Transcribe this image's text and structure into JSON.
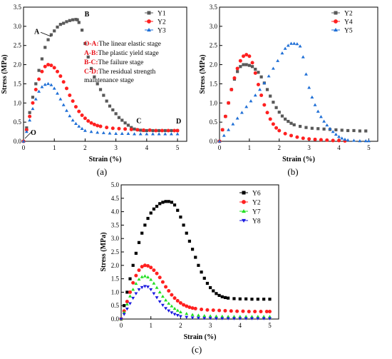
{
  "chart_data": [
    {
      "panel": "(a)",
      "type": "scatter",
      "xlabel": "Strain (%)",
      "ylabel": "Stress (MPa)",
      "xlim": [
        0,
        5.3
      ],
      "ylim": [
        0,
        3.5
      ],
      "xticks": [
        "0",
        "1",
        "2",
        "3",
        "4",
        "5"
      ],
      "yticks": [
        "0.0",
        "0.5",
        "1.0",
        "1.5",
        "2.0",
        "2.5",
        "3.0",
        "3.5"
      ],
      "legend_position": "top-right",
      "series": [
        {
          "name": "Y1",
          "color": "#595959",
          "marker": "square",
          "x": [
            0.0,
            0.1,
            0.2,
            0.3,
            0.4,
            0.5,
            0.6,
            0.7,
            0.8,
            0.9,
            1.0,
            1.1,
            1.2,
            1.3,
            1.4,
            1.5,
            1.6,
            1.7,
            1.75,
            1.8,
            1.9,
            2.0,
            2.1,
            2.2,
            2.3,
            2.4,
            2.5,
            2.6,
            2.7,
            2.8,
            2.9,
            3.0,
            3.1,
            3.2,
            3.3,
            3.4,
            3.5,
            3.6,
            3.7,
            3.8,
            3.9,
            4.0,
            4.2,
            4.4,
            4.6,
            4.8,
            5.0
          ],
          "y": [
            0.0,
            0.35,
            0.75,
            1.15,
            1.5,
            1.85,
            2.15,
            2.45,
            2.65,
            2.78,
            2.88,
            2.98,
            3.05,
            3.08,
            3.12,
            3.15,
            3.17,
            3.18,
            3.17,
            3.1,
            2.9,
            2.55,
            2.2,
            1.9,
            1.68,
            1.5,
            1.35,
            1.2,
            1.05,
            0.92,
            0.82,
            0.72,
            0.62,
            0.55,
            0.48,
            0.42,
            0.36,
            0.32,
            0.3,
            0.29,
            0.28,
            0.28,
            0.28,
            0.28,
            0.28,
            0.28,
            0.28
          ]
        },
        {
          "name": "Y2",
          "color": "#ff2020",
          "marker": "circle",
          "x": [
            0.0,
            0.1,
            0.2,
            0.3,
            0.4,
            0.5,
            0.6,
            0.7,
            0.8,
            0.9,
            1.0,
            1.1,
            1.2,
            1.3,
            1.4,
            1.5,
            1.6,
            1.7,
            1.8,
            1.9,
            2.0,
            2.1,
            2.2,
            2.3,
            2.4,
            2.5,
            2.7,
            2.9,
            3.1,
            3.3,
            3.5,
            3.7,
            3.9,
            4.1,
            4.3,
            4.5,
            4.7,
            4.9,
            5.0
          ],
          "y": [
            0.0,
            0.3,
            0.65,
            1.0,
            1.35,
            1.62,
            1.82,
            1.95,
            2.0,
            1.98,
            1.92,
            1.82,
            1.7,
            1.55,
            1.38,
            1.2,
            1.05,
            0.9,
            0.78,
            0.68,
            0.6,
            0.53,
            0.48,
            0.44,
            0.41,
            0.39,
            0.36,
            0.34,
            0.33,
            0.32,
            0.31,
            0.3,
            0.29,
            0.29,
            0.28,
            0.28,
            0.28,
            0.28,
            0.28
          ]
        },
        {
          "name": "Y3",
          "color": "#1f6fd6",
          "marker": "triangle",
          "x": [
            0.0,
            0.1,
            0.2,
            0.3,
            0.4,
            0.5,
            0.6,
            0.7,
            0.8,
            0.9,
            1.0,
            1.1,
            1.2,
            1.3,
            1.4,
            1.5,
            1.6,
            1.7,
            1.8,
            1.9,
            2.0,
            2.2,
            2.4,
            2.6,
            2.8,
            3.0,
            3.2,
            3.4,
            3.6,
            3.8,
            4.0,
            4.2,
            4.4,
            4.6,
            4.8,
            5.0
          ],
          "y": [
            0.0,
            0.25,
            0.55,
            0.85,
            1.1,
            1.3,
            1.42,
            1.48,
            1.5,
            1.47,
            1.38,
            1.25,
            1.1,
            0.95,
            0.8,
            0.66,
            0.55,
            0.46,
            0.39,
            0.33,
            0.28,
            0.25,
            0.23,
            0.22,
            0.21,
            0.2,
            0.2,
            0.2,
            0.19,
            0.19,
            0.19,
            0.19,
            0.19,
            0.19,
            0.19,
            0.19
          ]
        }
      ],
      "annotations": {
        "point_labels": [
          {
            "text": "A",
            "x": 0.95,
            "y": 2.88
          },
          {
            "text": "B",
            "x": 1.75,
            "y": 3.18
          },
          {
            "text": "O",
            "x": 0.0,
            "y": 0.0
          },
          {
            "text": "C",
            "x": 3.8,
            "y": 0.29
          },
          {
            "text": "D",
            "x": 5.0,
            "y": 0.28
          }
        ],
        "stages": [
          {
            "key": "O-A:",
            "text": "The linear elastic stage"
          },
          {
            "key": "A-B:",
            "text": "The plastic yield stage"
          },
          {
            "key": "B-C:",
            "text": "The failure stage"
          },
          {
            "key": "C-D:",
            "text": "The residual strength"
          },
          {
            "key": "",
            "text": "maintenance stage"
          }
        ]
      }
    },
    {
      "panel": "(b)",
      "type": "scatter",
      "xlabel": "Strain (%)",
      "ylabel": "Stress (MPa)",
      "xlim": [
        0,
        5.3
      ],
      "ylim": [
        0,
        3.5
      ],
      "xticks": [
        "0",
        "1",
        "2",
        "3",
        "4",
        "5"
      ],
      "yticks": [
        "0.0",
        "0.5",
        "1.0",
        "1.5",
        "2.0",
        "2.5",
        "3.0",
        "3.5"
      ],
      "legend_position": "top-right",
      "series": [
        {
          "name": "Y2",
          "color": "#595959",
          "marker": "square",
          "x": [
            0.0,
            0.1,
            0.2,
            0.3,
            0.4,
            0.5,
            0.6,
            0.7,
            0.8,
            0.9,
            1.0,
            1.1,
            1.2,
            1.3,
            1.4,
            1.5,
            1.6,
            1.7,
            1.8,
            1.9,
            2.0,
            2.1,
            2.2,
            2.3,
            2.4,
            2.5,
            2.7,
            2.9,
            3.1,
            3.3,
            3.5,
            3.7,
            3.9,
            4.1,
            4.3,
            4.5,
            4.7,
            4.9
          ],
          "y": [
            0.0,
            0.3,
            0.65,
            1.0,
            1.35,
            1.62,
            1.82,
            1.95,
            2.0,
            2.0,
            1.98,
            1.95,
            1.88,
            1.8,
            1.68,
            1.52,
            1.35,
            1.18,
            1.02,
            0.88,
            0.76,
            0.66,
            0.58,
            0.52,
            0.47,
            0.43,
            0.39,
            0.36,
            0.34,
            0.33,
            0.32,
            0.31,
            0.3,
            0.29,
            0.28,
            0.28,
            0.27,
            0.27
          ]
        },
        {
          "name": "Y4",
          "color": "#ff2020",
          "marker": "circle",
          "x": [
            0.0,
            0.1,
            0.2,
            0.3,
            0.4,
            0.5,
            0.6,
            0.7,
            0.8,
            0.9,
            1.0,
            1.1,
            1.2,
            1.3,
            1.4,
            1.5,
            1.6,
            1.7,
            1.8,
            1.9,
            2.0,
            2.2,
            2.4,
            2.6,
            2.8,
            3.0,
            3.2,
            3.4,
            3.6,
            3.8,
            4.0,
            4.2
          ],
          "y": [
            0.0,
            0.3,
            0.65,
            1.0,
            1.35,
            1.65,
            1.9,
            2.1,
            2.22,
            2.26,
            2.22,
            2.05,
            1.78,
            1.48,
            1.2,
            0.95,
            0.75,
            0.58,
            0.45,
            0.35,
            0.28,
            0.2,
            0.15,
            0.11,
            0.08,
            0.06,
            0.05,
            0.04,
            0.03,
            0.02,
            0.02,
            0.01
          ]
        },
        {
          "name": "Y5",
          "color": "#1f6fd6",
          "marker": "triangle",
          "x": [
            0.0,
            0.15,
            0.3,
            0.45,
            0.6,
            0.75,
            0.9,
            1.05,
            1.2,
            1.35,
            1.5,
            1.65,
            1.8,
            1.95,
            2.1,
            2.2,
            2.3,
            2.4,
            2.5,
            2.6,
            2.7,
            2.8,
            2.9,
            3.0,
            3.1,
            3.2,
            3.3,
            3.4,
            3.5,
            3.6,
            3.7,
            3.8,
            3.9,
            4.0,
            4.1,
            4.2,
            4.3,
            4.5,
            4.7,
            4.9,
            5.0
          ],
          "y": [
            0.0,
            0.15,
            0.3,
            0.45,
            0.6,
            0.75,
            0.9,
            1.05,
            1.2,
            1.35,
            1.52,
            1.7,
            1.9,
            2.1,
            2.3,
            2.42,
            2.5,
            2.55,
            2.55,
            2.54,
            2.48,
            2.2,
            1.75,
            1.4,
            1.15,
            0.95,
            0.78,
            0.64,
            0.52,
            0.42,
            0.33,
            0.25,
            0.18,
            0.12,
            0.08,
            0.05,
            0.03,
            0.02,
            0.01,
            0.01,
            0.01
          ]
        }
      ]
    },
    {
      "panel": "(c)",
      "type": "scatter",
      "xlabel": "Strain (%)",
      "ylabel": "Stress (MPa)",
      "xlim": [
        0,
        5.3
      ],
      "ylim": [
        0,
        5.0
      ],
      "xticks": [
        "0",
        "1",
        "2",
        "3",
        "4",
        "5"
      ],
      "yticks": [
        "0.0",
        "0.5",
        "1.0",
        "1.5",
        "2.0",
        "2.5",
        "3.0",
        "3.5",
        "4.0",
        "4.5",
        "5.0"
      ],
      "legend_position": "top-right",
      "series": [
        {
          "name": "Y6",
          "color": "#000000",
          "marker": "square",
          "x": [
            0.0,
            0.1,
            0.2,
            0.3,
            0.4,
            0.5,
            0.6,
            0.7,
            0.8,
            0.9,
            1.0,
            1.1,
            1.2,
            1.3,
            1.4,
            1.5,
            1.6,
            1.7,
            1.8,
            1.9,
            2.0,
            2.1,
            2.2,
            2.3,
            2.4,
            2.5,
            2.6,
            2.7,
            2.8,
            2.9,
            3.0,
            3.1,
            3.2,
            3.3,
            3.4,
            3.5,
            3.6,
            3.8,
            4.0,
            4.2,
            4.4,
            4.6,
            4.8,
            5.0
          ],
          "y": [
            0.0,
            0.5,
            1.0,
            1.5,
            2.0,
            2.45,
            2.85,
            3.2,
            3.5,
            3.75,
            3.95,
            4.1,
            4.2,
            4.3,
            4.35,
            4.38,
            4.38,
            4.35,
            4.25,
            4.05,
            3.8,
            3.5,
            3.2,
            2.9,
            2.6,
            2.3,
            2.0,
            1.75,
            1.52,
            1.33,
            1.17,
            1.05,
            0.95,
            0.88,
            0.83,
            0.8,
            0.78,
            0.76,
            0.75,
            0.75,
            0.74,
            0.74,
            0.74,
            0.74
          ]
        },
        {
          "name": "Y2",
          "color": "#ff2020",
          "marker": "circle",
          "x": [
            0.0,
            0.1,
            0.2,
            0.3,
            0.4,
            0.5,
            0.6,
            0.7,
            0.8,
            0.9,
            1.0,
            1.1,
            1.2,
            1.3,
            1.4,
            1.5,
            1.6,
            1.7,
            1.8,
            1.9,
            2.0,
            2.1,
            2.2,
            2.3,
            2.4,
            2.5,
            2.7,
            2.9,
            3.1,
            3.3,
            3.5,
            3.7,
            3.9,
            4.1,
            4.3,
            4.5,
            4.7,
            4.9,
            5.0
          ],
          "y": [
            0.0,
            0.3,
            0.65,
            1.0,
            1.35,
            1.62,
            1.82,
            1.95,
            2.0,
            1.98,
            1.92,
            1.82,
            1.7,
            1.55,
            1.38,
            1.2,
            1.05,
            0.9,
            0.78,
            0.68,
            0.6,
            0.53,
            0.48,
            0.44,
            0.41,
            0.39,
            0.36,
            0.34,
            0.33,
            0.32,
            0.31,
            0.3,
            0.29,
            0.29,
            0.28,
            0.28,
            0.28,
            0.28,
            0.28
          ]
        },
        {
          "name": "Y7",
          "color": "#22e022",
          "marker": "triangle",
          "x": [
            0.0,
            0.1,
            0.2,
            0.3,
            0.4,
            0.5,
            0.6,
            0.7,
            0.8,
            0.9,
            1.0,
            1.1,
            1.2,
            1.3,
            1.4,
            1.5,
            1.6,
            1.7,
            1.8,
            1.9,
            2.0,
            2.2,
            2.4,
            2.6,
            2.8,
            3.0,
            3.2,
            3.4,
            3.6,
            3.8,
            4.0,
            4.2,
            4.4,
            4.6,
            4.8,
            5.0
          ],
          "y": [
            0.0,
            0.25,
            0.55,
            0.85,
            1.1,
            1.32,
            1.48,
            1.57,
            1.6,
            1.56,
            1.47,
            1.33,
            1.17,
            1.0,
            0.84,
            0.7,
            0.58,
            0.48,
            0.39,
            0.32,
            0.26,
            0.2,
            0.16,
            0.14,
            0.12,
            0.11,
            0.1,
            0.1,
            0.09,
            0.09,
            0.09,
            0.09,
            0.09,
            0.09,
            0.09,
            0.09
          ]
        },
        {
          "name": "Y8",
          "color": "#1a1adf",
          "marker": "triangle-down",
          "x": [
            0.0,
            0.1,
            0.2,
            0.3,
            0.4,
            0.5,
            0.6,
            0.7,
            0.8,
            0.9,
            1.0,
            1.1,
            1.2,
            1.3,
            1.4,
            1.5,
            1.6,
            1.7,
            1.8,
            1.9,
            2.0,
            2.2,
            2.4,
            2.6,
            2.8,
            3.0,
            3.2,
            3.4,
            3.6,
            3.8,
            4.0,
            4.2,
            4.4,
            4.6,
            4.8,
            5.0
          ],
          "y": [
            0.0,
            0.18,
            0.38,
            0.58,
            0.78,
            0.95,
            1.1,
            1.18,
            1.22,
            1.2,
            1.1,
            0.95,
            0.8,
            0.65,
            0.52,
            0.4,
            0.31,
            0.24,
            0.18,
            0.14,
            0.1,
            0.07,
            0.05,
            0.04,
            0.03,
            0.03,
            0.02,
            0.02,
            0.02,
            0.02,
            0.02,
            0.02,
            0.02,
            0.02,
            0.02,
            0.02
          ]
        }
      ]
    }
  ]
}
